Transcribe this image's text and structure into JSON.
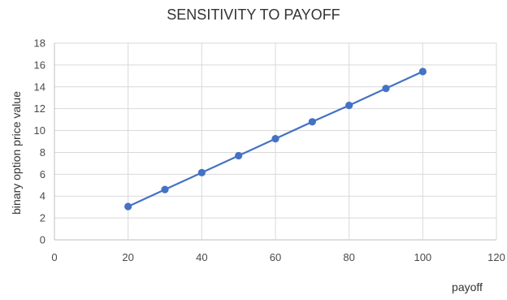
{
  "chart_data": {
    "type": "scatter",
    "title": "SENSITIVITY TO PAYOFF",
    "xlabel": "payoff",
    "ylabel": "binary option price value",
    "xlim": [
      0,
      120
    ],
    "ylim": [
      0,
      18
    ],
    "x_ticks": [
      0,
      20,
      40,
      60,
      80,
      100,
      120
    ],
    "y_ticks": [
      0,
      2,
      4,
      6,
      8,
      10,
      12,
      14,
      16,
      18
    ],
    "grid": true,
    "legend": "none",
    "series": [
      {
        "color": "#4472c4",
        "style": "line-with-markers",
        "x": [
          20,
          30,
          40,
          50,
          60,
          70,
          80,
          90,
          100
        ],
        "y": [
          3.05,
          4.6,
          6.15,
          7.7,
          9.25,
          10.8,
          12.3,
          13.85,
          15.4
        ]
      }
    ]
  }
}
